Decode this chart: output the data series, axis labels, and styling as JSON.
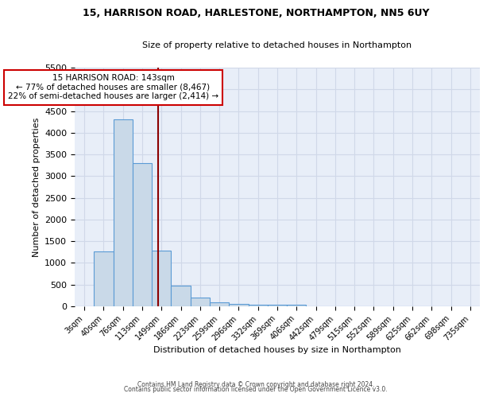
{
  "title1": "15, HARRISON ROAD, HARLESTONE, NORTHAMPTON, NN5 6UY",
  "title2": "Size of property relative to detached houses in Northampton",
  "xlabel": "Distribution of detached houses by size in Northampton",
  "ylabel": "Number of detached properties",
  "bar_labels": [
    "3sqm",
    "40sqm",
    "76sqm",
    "113sqm",
    "149sqm",
    "186sqm",
    "223sqm",
    "259sqm",
    "296sqm",
    "332sqm",
    "369sqm",
    "406sqm",
    "442sqm",
    "479sqm",
    "515sqm",
    "552sqm",
    "589sqm",
    "625sqm",
    "662sqm",
    "698sqm",
    "735sqm"
  ],
  "bar_values": [
    0,
    1270,
    4300,
    3300,
    1280,
    480,
    210,
    90,
    60,
    40,
    40,
    40,
    0,
    0,
    0,
    0,
    0,
    0,
    0,
    0,
    0
  ],
  "bar_color": "#c9d9e8",
  "bar_edgecolor": "#5b9bd5",
  "ylim": [
    0,
    5500
  ],
  "yticks": [
    0,
    500,
    1000,
    1500,
    2000,
    2500,
    3000,
    3500,
    4000,
    4500,
    5000,
    5500
  ],
  "vline_color": "#8b0000",
  "annotation_text": "15 HARRISON ROAD: 143sqm\n← 77% of detached houses are smaller (8,467)\n22% of semi-detached houses are larger (2,414) →",
  "annotation_box_color": "#ffffff",
  "annotation_box_edgecolor": "#cc0000",
  "grid_color": "#d0d8e8",
  "background_color": "#e8eef8",
  "footer1": "Contains HM Land Registry data © Crown copyright and database right 2024.",
  "footer2": "Contains public sector information licensed under the Open Government Licence v3.0."
}
